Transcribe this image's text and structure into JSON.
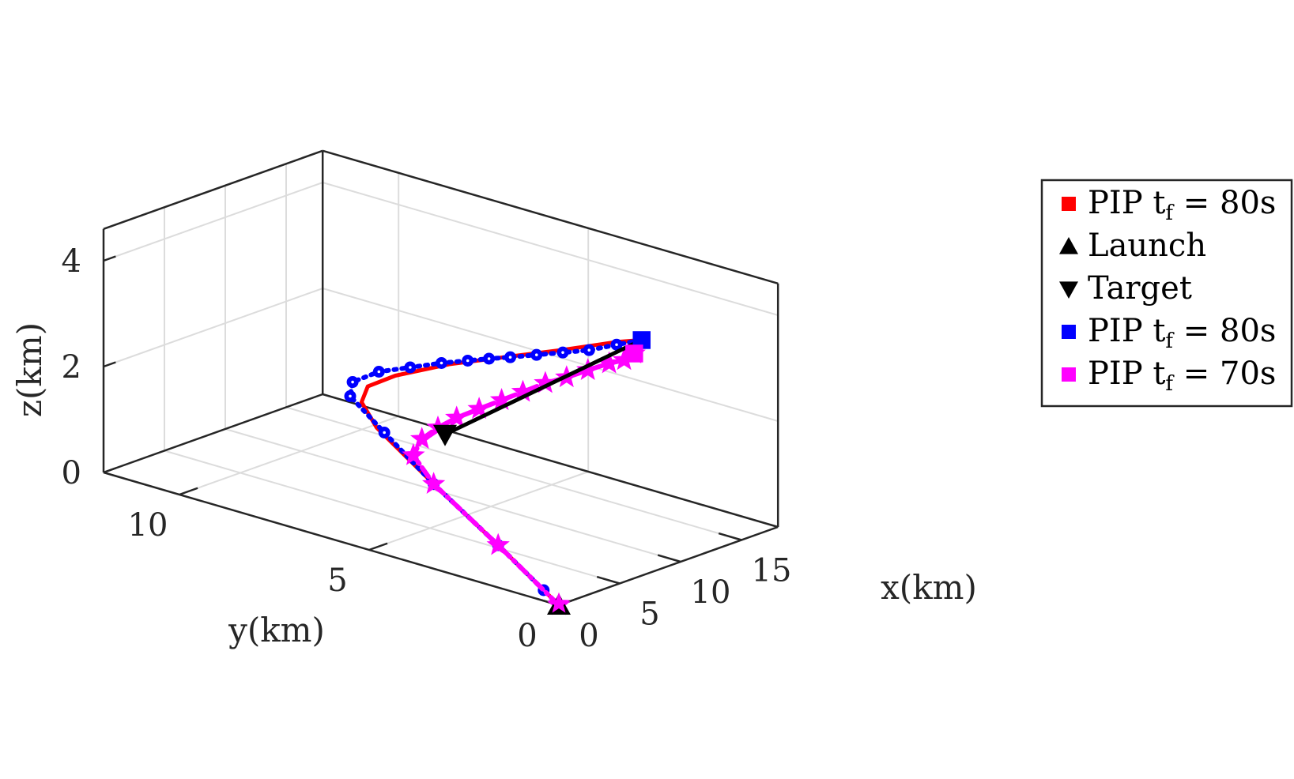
{
  "chart_data": {
    "type": "line",
    "projection": "3d",
    "xlabel": "x(km)",
    "ylabel": "y(km)",
    "zlabel": "z(km)",
    "xlim": [
      0,
      18
    ],
    "ylim": [
      0,
      12
    ],
    "zlim": [
      0,
      4.6
    ],
    "x_ticks": [
      0,
      5,
      10,
      15
    ],
    "y_ticks": [
      0,
      5,
      10
    ],
    "z_ticks": [
      0,
      2,
      4
    ],
    "grid": true,
    "legend_position": "top-right",
    "legend": [
      {
        "label": "PIP t",
        "sub": "f",
        "suffix": " = 80s",
        "marker": "square",
        "color": "#ff0000"
      },
      {
        "label": "Launch",
        "sub": "",
        "suffix": "",
        "marker": "triangle-up",
        "color": "#000000"
      },
      {
        "label": "Target",
        "sub": "",
        "suffix": "",
        "marker": "triangle-down",
        "color": "#000000"
      },
      {
        "label": "PIP t",
        "sub": "f",
        "suffix": " = 80s",
        "marker": "square",
        "color": "#0000ff"
      },
      {
        "label": "PIP t",
        "sub": "f",
        "suffix": " = 70s",
        "marker": "square",
        "color": "#ff00ff"
      }
    ],
    "series": [
      {
        "style": "solid",
        "color": "#ff0000",
        "marker": "none",
        "points": [
          [
            0,
            0,
            0
          ],
          [
            0,
            1.6,
            0.8
          ],
          [
            0,
            3.3,
            1.6
          ],
          [
            0,
            4.8,
            2.35
          ],
          [
            0,
            5.2,
            2.75
          ],
          [
            0.2,
            5.1,
            3.05
          ],
          [
            0.9,
            4.6,
            3.3
          ],
          [
            2.2,
            3.6,
            3.62
          ],
          [
            3.5,
            2.6,
            3.85
          ],
          [
            5,
            1.5,
            4.1
          ],
          [
            6.3,
            0.5,
            4.35
          ],
          [
            6.8,
            0,
            4.45
          ]
        ]
      },
      {
        "style": "dotted",
        "color": "#0000ff",
        "marker": "circle",
        "points": [
          [
            0,
            0.4,
            0.2
          ],
          [
            0,
            1.6,
            0.8
          ],
          [
            0,
            3.3,
            1.6
          ],
          [
            0,
            4.6,
            2.3
          ],
          [
            0,
            5.5,
            2.8
          ],
          [
            0.2,
            5.5,
            3.05
          ],
          [
            0.8,
            5.0,
            3.3
          ],
          [
            1.5,
            4.4,
            3.45
          ],
          [
            2.2,
            3.8,
            3.6
          ],
          [
            2.8,
            3.3,
            3.7
          ],
          [
            3.3,
            2.9,
            3.78
          ],
          [
            3.8,
            2.5,
            3.85
          ],
          [
            4.4,
            2.0,
            3.95
          ],
          [
            5.0,
            1.5,
            4.05
          ],
          [
            5.6,
            1.0,
            4.15
          ],
          [
            6.3,
            0.5,
            4.3
          ],
          [
            6.8,
            0,
            4.45
          ]
        ]
      },
      {
        "style": "dashdot",
        "color": "#ff00ff",
        "marker": "star",
        "points": [
          [
            0,
            0,
            0
          ],
          [
            0,
            1.6,
            0.8
          ],
          [
            0,
            3.3,
            1.6
          ],
          [
            0.2,
            3.9,
            2.0
          ],
          [
            0.9,
            3.9,
            2.25
          ],
          [
            1.6,
            3.7,
            2.45
          ],
          [
            2.2,
            3.4,
            2.65
          ],
          [
            2.8,
            3.0,
            2.85
          ],
          [
            3.4,
            2.6,
            3.05
          ],
          [
            3.9,
            2.2,
            3.25
          ],
          [
            4.5,
            1.8,
            3.45
          ],
          [
            5.0,
            1.4,
            3.6
          ],
          [
            5.5,
            1.0,
            3.78
          ],
          [
            6.0,
            0.6,
            3.95
          ],
          [
            6.3,
            0.3,
            4.05
          ],
          [
            6.5,
            0.1,
            4.2
          ]
        ]
      },
      {
        "style": "solid",
        "color": "#000000",
        "marker": "none",
        "points": [
          [
            6.8,
            0,
            4.45
          ],
          [
            0,
            3.0,
            2.6
          ]
        ]
      }
    ],
    "markers": [
      {
        "name": "launch",
        "shape": "triangle-up",
        "color": "#000000",
        "point": [
          0,
          0,
          0
        ]
      },
      {
        "name": "target",
        "shape": "triangle-down",
        "color": "#000000",
        "point": [
          0,
          3.0,
          2.6
        ]
      },
      {
        "name": "pip-80-blue",
        "shape": "square",
        "color": "#0000ff",
        "point": [
          6.8,
          0,
          4.45
        ]
      },
      {
        "name": "pip-70-magenta",
        "shape": "square",
        "color": "#ff00ff",
        "point": [
          6.5,
          0.1,
          4.2
        ]
      }
    ]
  }
}
